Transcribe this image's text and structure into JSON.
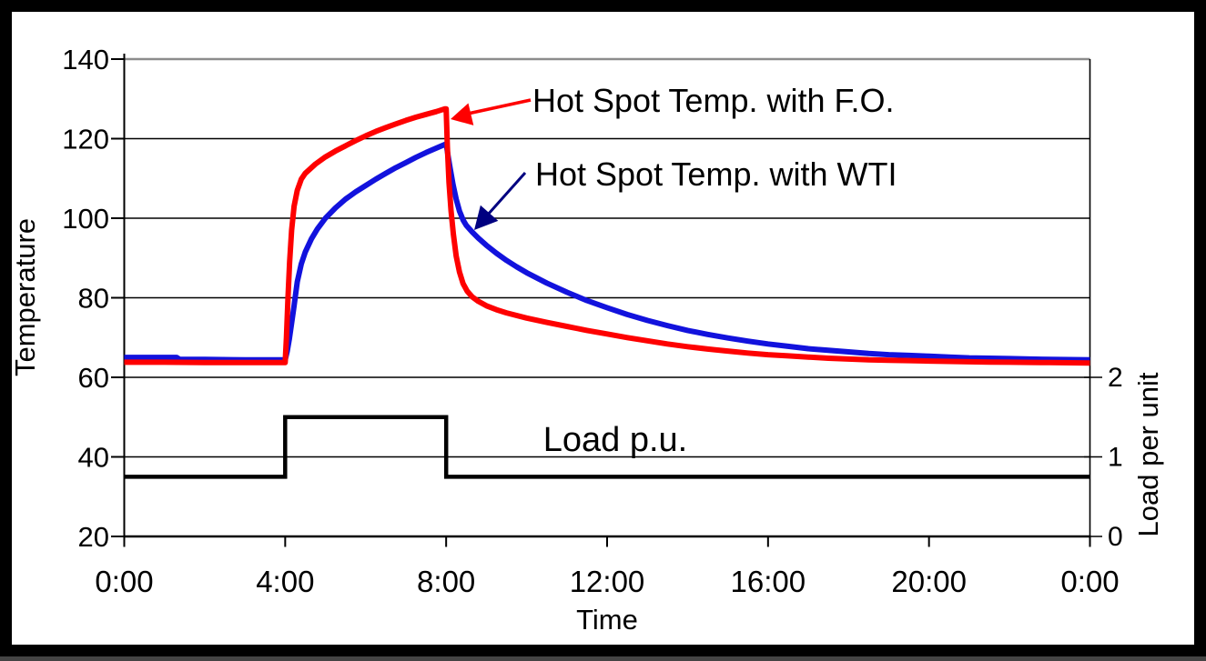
{
  "frame": {
    "border_color": "#000000",
    "background": "#ffffff"
  },
  "chart_data": {
    "type": "line",
    "title": "",
    "grid": "horizontal",
    "legend_position": "none-inline-annotations",
    "x_axis": {
      "title": "Time",
      "tick_labels": [
        "0:00",
        "4:00",
        "8:00",
        "12:00",
        "16:00",
        "20:00",
        "0:00"
      ],
      "tick_hours": [
        0,
        4,
        8,
        12,
        16,
        20,
        24
      ],
      "range_hours": [
        0,
        24
      ]
    },
    "y_axis_left": {
      "title": "Temperature",
      "ticks": [
        20,
        40,
        60,
        80,
        100,
        120,
        140
      ],
      "range": [
        20,
        140
      ],
      "top_gridline_color": "#8c8c8c",
      "gridline_color": "#000000"
    },
    "y_axis_right": {
      "title": "Load per unit",
      "ticks": [
        0,
        1,
        2
      ],
      "temp_equiv_at_zero": 20,
      "temp_equiv_per_unit": 20
    },
    "series": [
      {
        "name": "Load p.u.",
        "color": "#000000",
        "axis": "right",
        "width": 4.5,
        "points": [
          [
            0,
            0.75
          ],
          [
            4,
            0.75
          ],
          [
            4,
            1.5
          ],
          [
            8,
            1.5
          ],
          [
            8,
            0.75
          ],
          [
            24,
            0.75
          ]
        ]
      },
      {
        "name": "Hot Spot Temp. with WTI",
        "color": "#1212dd",
        "axis": "left",
        "width": 6,
        "points": [
          [
            0,
            65.0
          ],
          [
            0.7,
            65.0
          ],
          [
            1.3,
            65.0
          ],
          [
            1.38,
            64.5
          ],
          [
            2,
            64.5
          ],
          [
            3,
            64.4
          ],
          [
            4,
            64.4
          ],
          [
            4.05,
            66.5
          ],
          [
            4.1,
            69.5
          ],
          [
            4.15,
            73
          ],
          [
            4.22,
            78
          ],
          [
            4.3,
            84
          ],
          [
            4.4,
            88.5
          ],
          [
            4.5,
            91.5
          ],
          [
            4.65,
            94.8
          ],
          [
            4.8,
            97.3
          ],
          [
            5,
            100
          ],
          [
            5.25,
            102.6
          ],
          [
            5.5,
            104.8
          ],
          [
            5.75,
            106.6
          ],
          [
            6,
            108.2
          ],
          [
            6.25,
            109.8
          ],
          [
            6.5,
            111.3
          ],
          [
            6.75,
            112.7
          ],
          [
            7,
            114
          ],
          [
            7.25,
            115.3
          ],
          [
            7.5,
            116.5
          ],
          [
            7.75,
            117.6
          ],
          [
            8,
            118.7
          ],
          [
            8.05,
            115.5
          ],
          [
            8.1,
            112.5
          ],
          [
            8.17,
            108.5
          ],
          [
            8.25,
            104.8
          ],
          [
            8.33,
            101.8
          ],
          [
            8.42,
            99.6
          ],
          [
            8.5,
            98.2
          ],
          [
            8.65,
            96.5
          ],
          [
            8.8,
            95
          ],
          [
            9,
            93.2
          ],
          [
            9.25,
            91.2
          ],
          [
            9.5,
            89.4
          ],
          [
            9.75,
            87.8
          ],
          [
            10,
            86.3
          ],
          [
            10.5,
            83.7
          ],
          [
            11,
            81.4
          ],
          [
            11.5,
            79.3
          ],
          [
            12,
            77.5
          ],
          [
            12.5,
            75.8
          ],
          [
            13,
            74.3
          ],
          [
            13.5,
            73
          ],
          [
            14,
            71.8
          ],
          [
            14.5,
            70.8
          ],
          [
            15,
            69.9
          ],
          [
            15.5,
            69.1
          ],
          [
            16,
            68.4
          ],
          [
            16.5,
            67.8
          ],
          [
            17,
            67.2
          ],
          [
            17.5,
            66.8
          ],
          [
            18,
            66.4
          ],
          [
            18.5,
            66.0
          ],
          [
            19,
            65.7
          ],
          [
            19.5,
            65.5
          ],
          [
            20,
            65.3
          ],
          [
            20.5,
            65.1
          ],
          [
            21,
            64.9
          ],
          [
            21.5,
            64.8
          ],
          [
            22,
            64.7
          ],
          [
            22.5,
            64.6
          ],
          [
            23,
            64.5
          ],
          [
            23.5,
            64.45
          ],
          [
            24,
            64.4
          ]
        ]
      },
      {
        "name": "Hot Spot Temp. with F.O.",
        "color": "#fe0000",
        "axis": "left",
        "width": 6,
        "points": [
          [
            0,
            63.8
          ],
          [
            1,
            63.8
          ],
          [
            2,
            63.7
          ],
          [
            3,
            63.7
          ],
          [
            4,
            63.7
          ],
          [
            4.03,
            70
          ],
          [
            4.07,
            80
          ],
          [
            4.11,
            89
          ],
          [
            4.16,
            97
          ],
          [
            4.22,
            103
          ],
          [
            4.3,
            107
          ],
          [
            4.4,
            109.8
          ],
          [
            4.5,
            111.3
          ],
          [
            4.75,
            113.6
          ],
          [
            5,
            115.4
          ],
          [
            5.25,
            116.9
          ],
          [
            5.5,
            118.2
          ],
          [
            5.75,
            119.5
          ],
          [
            6,
            120.7
          ],
          [
            6.25,
            121.8
          ],
          [
            6.5,
            122.8
          ],
          [
            6.75,
            123.7
          ],
          [
            7,
            124.6
          ],
          [
            7.25,
            125.4
          ],
          [
            7.5,
            126.1
          ],
          [
            7.75,
            126.8
          ],
          [
            7.97,
            127.5
          ],
          [
            8,
            127.5
          ],
          [
            8.03,
            118
          ],
          [
            8.07,
            109
          ],
          [
            8.12,
            102
          ],
          [
            8.18,
            96
          ],
          [
            8.25,
            90.5
          ],
          [
            8.33,
            86.5
          ],
          [
            8.42,
            83.6
          ],
          [
            8.52,
            81.7
          ],
          [
            8.65,
            80.2
          ],
          [
            8.8,
            79.1
          ],
          [
            9,
            78.0
          ],
          [
            9.25,
            77.0
          ],
          [
            9.5,
            76.2
          ],
          [
            10,
            74.9
          ],
          [
            10.5,
            73.8
          ],
          [
            11,
            72.8
          ],
          [
            11.5,
            71.8
          ],
          [
            12,
            70.9
          ],
          [
            12.5,
            70.0
          ],
          [
            13,
            69.2
          ],
          [
            13.5,
            68.4
          ],
          [
            14,
            67.7
          ],
          [
            14.5,
            67.1
          ],
          [
            15,
            66.6
          ],
          [
            15.5,
            66.1
          ],
          [
            16,
            65.7
          ],
          [
            16.5,
            65.4
          ],
          [
            17,
            65.1
          ],
          [
            17.5,
            64.8
          ],
          [
            18,
            64.6
          ],
          [
            18.5,
            64.4
          ],
          [
            19,
            64.3
          ],
          [
            19.5,
            64.2
          ],
          [
            20,
            64.1
          ],
          [
            20.5,
            64.0
          ],
          [
            21,
            63.9
          ],
          [
            21.5,
            63.85
          ],
          [
            22,
            63.8
          ],
          [
            22.5,
            63.75
          ],
          [
            23,
            63.7
          ],
          [
            23.5,
            63.65
          ],
          [
            24,
            63.6
          ]
        ]
      }
    ],
    "annotations": [
      {
        "text": "Hot Spot Temp. with F.O.",
        "color": "#fe0000",
        "points_to": "red curve peak at 8:00"
      },
      {
        "text": "Hot Spot Temp. with WTI",
        "color": "#000080",
        "points_to": "blue curve just after 8:00"
      },
      {
        "text": "Load p.u.",
        "color": "#000000",
        "points_to": "load step curve"
      }
    ]
  }
}
